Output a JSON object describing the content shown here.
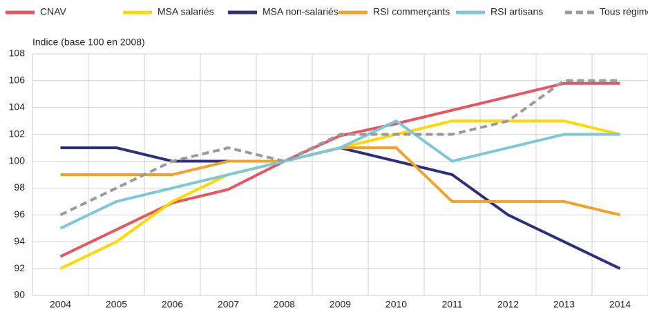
{
  "chart_data": {
    "type": "line",
    "y_label": "Indice (base 100 en 2008)",
    "categories": [
      "2004",
      "2005",
      "2006",
      "2007",
      "2008",
      "2009",
      "2010",
      "2011",
      "2012",
      "2013",
      "2014"
    ],
    "series": [
      {
        "name": "CNAV",
        "color": "#e8555f",
        "values": [
          92.9,
          94.9,
          96.9,
          97.9,
          100,
          101.9,
          102.8,
          103.8,
          104.8,
          105.8,
          105.8
        ]
      },
      {
        "name": "MSA salariés",
        "color": "#ffd800",
        "values": [
          92,
          94,
          97,
          99,
          100,
          101,
          102,
          103,
          103,
          103,
          102
        ]
      },
      {
        "name": "MSA non-salariés",
        "color": "#2b2f7e",
        "values": [
          101,
          101,
          100,
          100,
          100,
          101,
          100,
          99,
          96,
          94,
          92
        ]
      },
      {
        "name": "RSI commerçants",
        "color": "#f4a12a",
        "values": [
          99,
          99,
          99,
          100,
          100,
          101,
          101,
          97,
          97,
          97,
          96
        ]
      },
      {
        "name": "RSI artisans",
        "color": "#7cc8d8",
        "values": [
          95,
          97,
          98,
          99,
          100,
          101,
          103,
          100,
          101,
          102,
          102
        ]
      },
      {
        "name": "Tous régimes",
        "color": "#9a9a9a",
        "dashed": true,
        "values": [
          96,
          98,
          100,
          101,
          100,
          102,
          102,
          102,
          103,
          106,
          106
        ]
      }
    ],
    "ylim": [
      90,
      108
    ],
    "yticks": [
      90,
      92,
      94,
      96,
      98,
      100,
      102,
      104,
      106,
      108
    ],
    "grid": true,
    "legend": "top"
  }
}
